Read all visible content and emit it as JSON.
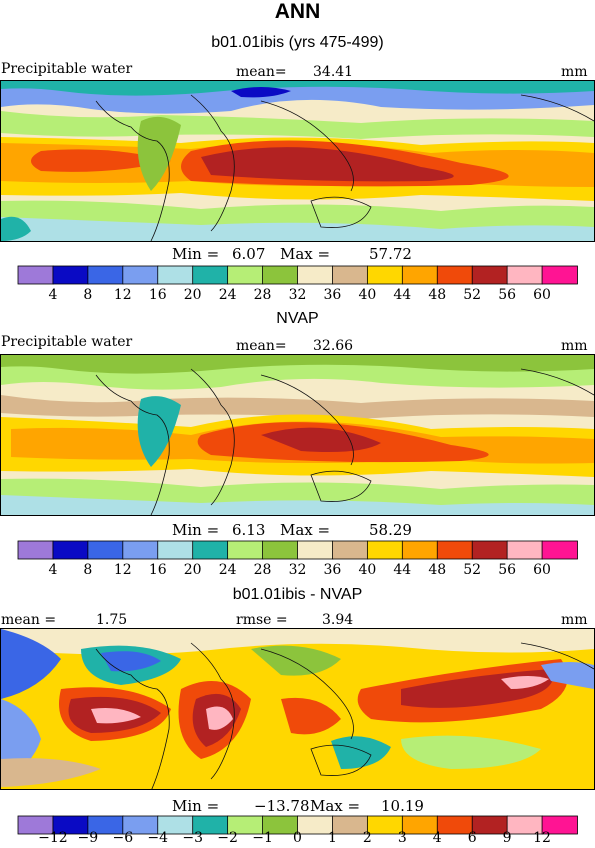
{
  "header": {
    "title": "ANN",
    "subtitle": "b01.01ibis (yrs 475-499)"
  },
  "chart_data": [
    {
      "type": "heatmap",
      "title": "",
      "field_label": "Precipitable water",
      "stats_label": "mean=",
      "stats_value": "34.41",
      "units": "mm",
      "min_label": "Min =",
      "min_value": "6.07",
      "max_label": "Max =",
      "max_value": "57.72",
      "colorbar_ticks": [
        "4",
        "8",
        "12",
        "16",
        "20",
        "24",
        "28",
        "32",
        "36",
        "40",
        "44",
        "48",
        "52",
        "56",
        "60"
      ],
      "colors": [
        "#9e79d9",
        "#0a0ac4",
        "#3a66e6",
        "#7a9ef0",
        "#aee0e6",
        "#20b2a8",
        "#b6ee76",
        "#8cc43c",
        "#f6ebc8",
        "#d9b78e",
        "#ffd700",
        "#ffa500",
        "#f04a0a",
        "#b22222",
        "#ffb6c1",
        "#ff1493"
      ]
    },
    {
      "type": "heatmap",
      "title": "NVAP",
      "field_label": "Precipitable water",
      "stats_label": "mean=",
      "stats_value": "32.66",
      "units": "mm",
      "min_label": "Min =",
      "min_value": "6.13",
      "max_label": "Max =",
      "max_value": "58.29",
      "colorbar_ticks": [
        "4",
        "8",
        "12",
        "16",
        "20",
        "24",
        "28",
        "32",
        "36",
        "40",
        "44",
        "48",
        "52",
        "56",
        "60"
      ],
      "colors": [
        "#9e79d9",
        "#0a0ac4",
        "#3a66e6",
        "#7a9ef0",
        "#aee0e6",
        "#20b2a8",
        "#b6ee76",
        "#8cc43c",
        "#f6ebc8",
        "#d9b78e",
        "#ffd700",
        "#ffa500",
        "#f04a0a",
        "#b22222",
        "#ffb6c1",
        "#ff1493"
      ]
    },
    {
      "type": "heatmap",
      "title": "b01.01ibis - NVAP",
      "stats_label": "mean =",
      "stats_value": "1.75",
      "stats2_label": "rmse =",
      "stats2_value": "3.94",
      "units": "mm",
      "min_label": "Min =",
      "min_value": "−13.78",
      "max_label": "Max =",
      "max_value": "10.19",
      "colorbar_ticks": [
        "−12",
        "−9",
        "−6",
        "−4",
        "−3",
        "−2",
        "−1",
        "0",
        "1",
        "2",
        "3",
        "4",
        "6",
        "9",
        "12"
      ],
      "colors": [
        "#9e79d9",
        "#0a0ac4",
        "#3a66e6",
        "#7a9ef0",
        "#aee0e6",
        "#20b2a8",
        "#b6ee76",
        "#8cc43c",
        "#f6ebc8",
        "#d9b78e",
        "#ffd700",
        "#ffa500",
        "#f04a0a",
        "#b22222",
        "#ffb6c1",
        "#ff1493"
      ]
    }
  ]
}
